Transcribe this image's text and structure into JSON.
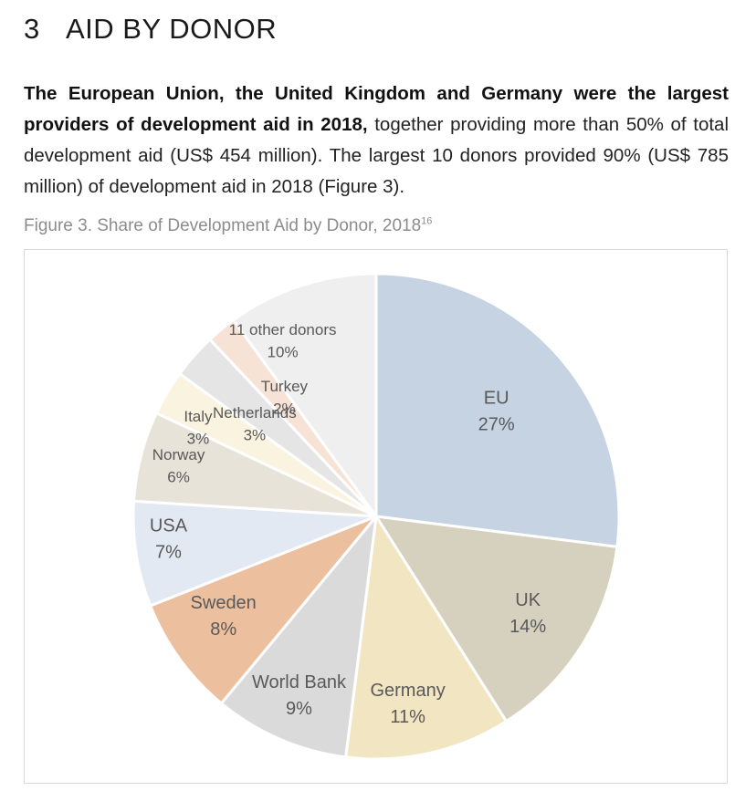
{
  "section": {
    "number": "3",
    "title": "AID BY DONOR"
  },
  "paragraph": {
    "bold_text": "The European Union, the United Kingdom and Germany were the largest providers of development aid in 2018,",
    "normal_text": " together providing more than 50% of total development aid (US$ 454 million). The largest 10 donors provided 90% (US$ 785 million) of development aid in 2018 (Figure 3)."
  },
  "figure": {
    "caption": "Figure 3. Share of Development Aid by Donor, 2018",
    "footnote": "16"
  },
  "chart_data": {
    "type": "pie",
    "title": "Share of Development Aid by Donor, 2018",
    "start_angle_deg": 0,
    "direction": "clockwise",
    "slices": [
      {
        "name": "EU",
        "value": 27,
        "label": "27%",
        "color": "#c5d3e2"
      },
      {
        "name": "UK",
        "value": 14,
        "label": "14%",
        "color": "#d6d1bf"
      },
      {
        "name": "Germany",
        "value": 11,
        "label": "11%",
        "color": "#f2e6c2"
      },
      {
        "name": "World Bank",
        "value": 9,
        "label": "9%",
        "color": "#dadada"
      },
      {
        "name": "Sweden",
        "value": 8,
        "label": "8%",
        "color": "#ecc09e"
      },
      {
        "name": "USA",
        "value": 7,
        "label": "7%",
        "color": "#e3e9f2"
      },
      {
        "name": "Norway",
        "value": 6,
        "label": "6%",
        "color": "#e7e3d8"
      },
      {
        "name": "Italy",
        "value": 3,
        "label": "3%",
        "color": "#faf3e0"
      },
      {
        "name": "Netherlands",
        "value": 3,
        "label": "3%",
        "color": "#e5e5e5"
      },
      {
        "name": "Turkey",
        "value": 2,
        "label": "2%",
        "color": "#f7e2d6"
      },
      {
        "name": "11 other donors",
        "value": 10,
        "label": "10%",
        "color": "#efefef"
      }
    ]
  }
}
